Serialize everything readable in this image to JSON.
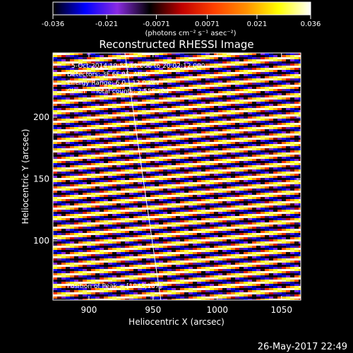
{
  "chart_data": {
    "type": "heatmap",
    "title": "Reconstructed RHESSI Image",
    "xlabel": "Heliocentric X (arcsec)",
    "ylabel": "Heliocentric Y (arcsec)",
    "xlim": [
      872,
      1065
    ],
    "ylim": [
      52,
      252
    ],
    "x_ticks": [
      900,
      950,
      1000,
      1050
    ],
    "y_ticks": [
      100,
      150,
      200
    ],
    "colorbar": {
      "min": -0.036,
      "max": 0.036,
      "ticks": [
        "-0.036",
        "-0.021",
        "-0.0071",
        "0.0071",
        "0.021",
        "0.036"
      ],
      "unit_label": "(photons cm⁻² s⁻¹ asec⁻²)",
      "colormap": [
        "#000000",
        "#0000ff",
        "#8a2be2",
        "#000000",
        "#c00000",
        "#ff4000",
        "#ff9000",
        "#ffff00",
        "#ffffff"
      ]
    },
    "annotations": {
      "line1": "5-Oct-2014 19:57:12.000 to 20:02:12.000",
      "line2": "Detectors: 3F 6F 9F, Att 0",
      "line3": "Energy Range: 6.0 - 12.0 keV",
      "line4": "Clean     Total counts: 2.55E+04",
      "peak": "Position of Peak = [1043,107]"
    },
    "pattern": {
      "description": "diagonal fringe stripes",
      "slope_arcsec_per_arcsec": 0.115,
      "period_arcsec": 7.8,
      "peak_position": [
        1043,
        107
      ]
    },
    "limb_line": {
      "x0": 928,
      "y0": 252,
      "x1": 956,
      "y1": 52
    }
  },
  "footer": {
    "timestamp": "26-May-2017 22:49"
  }
}
